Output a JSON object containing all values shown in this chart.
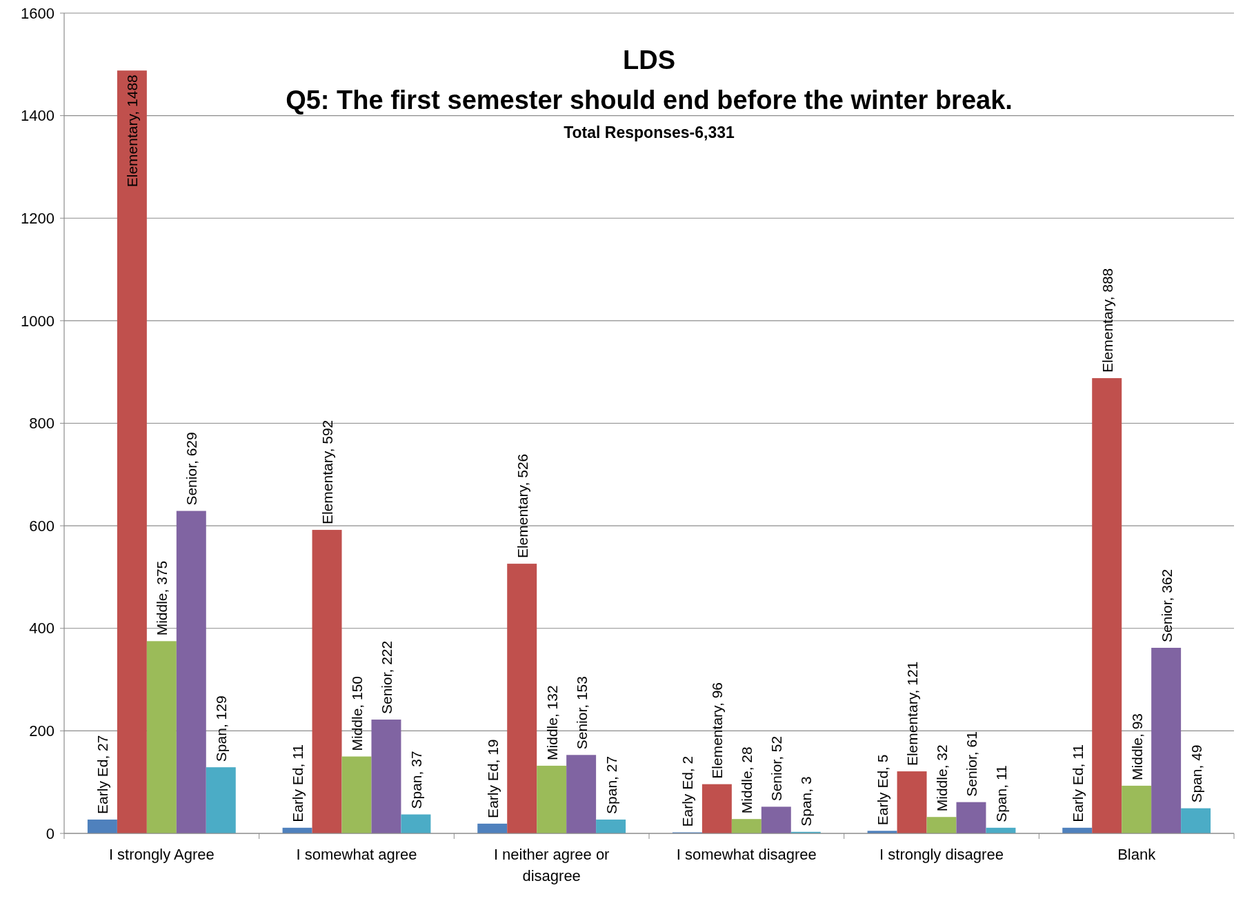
{
  "chart_data": {
    "type": "bar",
    "title": "LDS\nQ5: The first semester should end before the winter break.",
    "subtitle": "Total Responses-6,331",
    "categories": [
      "I strongly Agree",
      "I somewhat agree",
      "I neither agree or disagree",
      "I somewhat disagree",
      "I strongly disagree",
      "Blank"
    ],
    "series": [
      {
        "color": "#4f81bd",
        "values": [
          27,
          11,
          19,
          2,
          5,
          11
        ],
        "value_labels": [
          "Early Ed, 27",
          "Early Ed, 11",
          "Early Ed, 19",
          "Early Ed, 2",
          "Early Ed, 5",
          "Early Ed, 11"
        ]
      },
      {
        "color": "#c0504d",
        "values": [
          1488,
          592,
          526,
          96,
          121,
          888
        ],
        "value_labels": [
          "Elementary, 1488",
          "Elementary, 592",
          "Elementary, 526",
          "Elementary, 96",
          "Elementary, 121",
          "Elementary, 888"
        ]
      },
      {
        "color": "#9bbb59",
        "values": [
          375,
          150,
          132,
          28,
          32,
          93
        ],
        "value_labels": [
          "Middle, 375",
          "Middle, 150",
          "Middle, 132",
          "Middle, 28",
          "Middle, 32",
          "Middle, 93"
        ]
      },
      {
        "color": "#8064a2",
        "values": [
          629,
          222,
          153,
          52,
          61,
          362
        ],
        "value_labels": [
          "Senior, 629",
          "Senior, 222",
          "Senior, 153",
          "Senior, 52",
          "Senior, 61",
          "Senior, 362"
        ]
      },
      {
        "color": "#4bacc6",
        "values": [
          129,
          37,
          27,
          3,
          11,
          49
        ],
        "value_labels": [
          "Span, 129",
          "Span, 37",
          "Span, 27",
          "Span, 3",
          "Span, 11",
          "Span, 49"
        ]
      }
    ],
    "ylim": [
      0,
      1600
    ],
    "yticks": [
      0,
      200,
      400,
      600,
      800,
      1000,
      1200,
      1400,
      1600
    ],
    "grid": "y"
  }
}
